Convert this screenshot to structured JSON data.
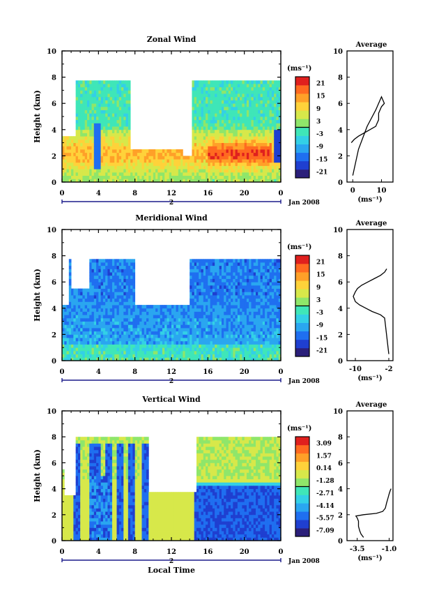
{
  "chart_data": [
    {
      "type": "heatmap",
      "title": "Zonal Wind",
      "ylabel": "Height (km)",
      "xlabel": "",
      "ylim": [
        0,
        10
      ],
      "xlim": [
        0,
        24
      ],
      "yticks": [
        "0",
        "2",
        "4",
        "6",
        "8",
        "10"
      ],
      "xticks": [
        "0",
        "4",
        "8",
        "12",
        "16",
        "20",
        "0"
      ],
      "date_marker": "2",
      "date_label": "Jan 2008",
      "colorbar": {
        "unit": "(ms⁻¹)",
        "tick_labels": [
          "21",
          "15",
          "9",
          "3",
          "-3",
          "-9",
          "-15",
          "-21"
        ],
        "range": [
          -24,
          24
        ],
        "colors": [
          "#2b1f7a",
          "#1f3fd0",
          "#1f6ff0",
          "#2aa6f0",
          "#33d0e6",
          "#3fe6b8",
          "#8fe66a",
          "#d7e84a",
          "#ffd23a",
          "#ffa028",
          "#ff6a20",
          "#e0201e"
        ]
      },
      "profile": {
        "title": "Average",
        "xlabel": "(ms⁻¹)",
        "xticks": [
          "0",
          "10"
        ],
        "xlim": [
          -2,
          14
        ],
        "points": [
          [
            0,
            1.0
          ],
          [
            2,
            5.0
          ],
          [
            5,
            8.5
          ],
          [
            8,
            11.0
          ],
          [
            10,
            13.0
          ],
          [
            11,
            12.0
          ],
          [
            10,
            11.5
          ],
          [
            9,
            10.5
          ],
          [
            9,
            9.5
          ],
          [
            8.5,
            9.0
          ],
          [
            8,
            8.5
          ],
          [
            6,
            8.0
          ],
          [
            4,
            7.5
          ],
          [
            2,
            7.0
          ],
          [
            0.5,
            6.5
          ],
          [
            -0.5,
            6.0
          ]
        ]
      },
      "vmin": -24,
      "vmax": 24,
      "field": "zonal"
    },
    {
      "type": "heatmap",
      "title": "Meridional Wind",
      "ylabel": "Height (km)",
      "xlabel": "",
      "ylim": [
        0,
        10
      ],
      "xlim": [
        0,
        24
      ],
      "yticks": [
        "0",
        "2",
        "4",
        "6",
        "8",
        "10"
      ],
      "xticks": [
        "0",
        "4",
        "8",
        "12",
        "16",
        "20",
        "0"
      ],
      "date_marker": "2",
      "date_label": "Jan 2008",
      "colorbar": {
        "unit": "(ms⁻¹)",
        "tick_labels": [
          "21",
          "15",
          "9",
          "3",
          "-3",
          "-9",
          "-15",
          "-21"
        ],
        "range": [
          -24,
          24
        ],
        "colors": [
          "#2b1f7a",
          "#1f3fd0",
          "#1f6ff0",
          "#2aa6f0",
          "#33d0e6",
          "#3fe6b8",
          "#8fe66a",
          "#d7e84a",
          "#ffd23a",
          "#ffa028",
          "#ff6a20",
          "#e0201e"
        ]
      },
      "profile": {
        "title": "Average",
        "xlabel": "(ms⁻¹)",
        "xticks": [
          "-10",
          "-2"
        ],
        "xlim": [
          -12,
          -1
        ],
        "points": [
          [
            -2.0,
            1.0
          ],
          [
            -3.0,
            6.5
          ],
          [
            -4.0,
            7.0
          ],
          [
            -6.0,
            7.5
          ],
          [
            -7.5,
            8.0
          ],
          [
            -9.0,
            8.5
          ],
          [
            -10.0,
            9.0
          ],
          [
            -10.5,
            9.8
          ],
          [
            -10.0,
            10.5
          ],
          [
            -9.5,
            11.0
          ],
          [
            -8.5,
            11.5
          ],
          [
            -7.0,
            12.0
          ],
          [
            -5.5,
            12.5
          ],
          [
            -4.0,
            13.0
          ],
          [
            -3.0,
            13.5
          ],
          [
            -2.5,
            14.0
          ]
        ]
      },
      "vmin": -24,
      "vmax": 24,
      "field": "meridional"
    },
    {
      "type": "heatmap",
      "title": "Vertical Wind",
      "ylabel": "Height (km)",
      "xlabel": "Local Time",
      "ylim": [
        0,
        10
      ],
      "xlim": [
        0,
        24
      ],
      "yticks": [
        "0",
        "2",
        "4",
        "6",
        "8",
        "10"
      ],
      "xticks": [
        "0",
        "4",
        "8",
        "12",
        "16",
        "20",
        "0"
      ],
      "date_marker": "2",
      "date_label": "Jan 2008",
      "colorbar": {
        "unit": "(ms⁻¹)",
        "tick_labels": [
          "3.09",
          "1.57",
          "0.14",
          "-1.28",
          "-2.71",
          "-4.14",
          "-5.57",
          "-7.09"
        ],
        "range": [
          -8,
          4
        ],
        "colors": [
          "#2b1f7a",
          "#1f3fd0",
          "#1f6ff0",
          "#2aa6f0",
          "#33d0e6",
          "#3fe6b8",
          "#8fe66a",
          "#d7e84a",
          "#ffd23a",
          "#ffa028",
          "#ff6a20",
          "#e0201e"
        ]
      },
      "profile": {
        "title": "Average",
        "xlabel": "(ms⁻¹)",
        "xticks": [
          "-3.5",
          "-1.0"
        ],
        "xlim": [
          -4.3,
          -0.7
        ],
        "points": [
          [
            -3.0,
            0.5
          ],
          [
            -3.2,
            1.0
          ],
          [
            -3.3,
            1.5
          ],
          [
            -3.4,
            2.2
          ],
          [
            -3.4,
            3.0
          ],
          [
            -3.5,
            3.5
          ],
          [
            -3.6,
            3.8
          ],
          [
            -3.0,
            4.0
          ],
          [
            -2.0,
            4.2
          ],
          [
            -1.5,
            4.5
          ],
          [
            -1.3,
            5.0
          ],
          [
            -1.2,
            5.8
          ],
          [
            -1.1,
            6.5
          ],
          [
            -1.0,
            7.2
          ],
          [
            -0.9,
            7.8
          ],
          [
            -0.85,
            8.0
          ]
        ]
      },
      "vmin": -8,
      "vmax": 4,
      "field": "vertical"
    }
  ]
}
